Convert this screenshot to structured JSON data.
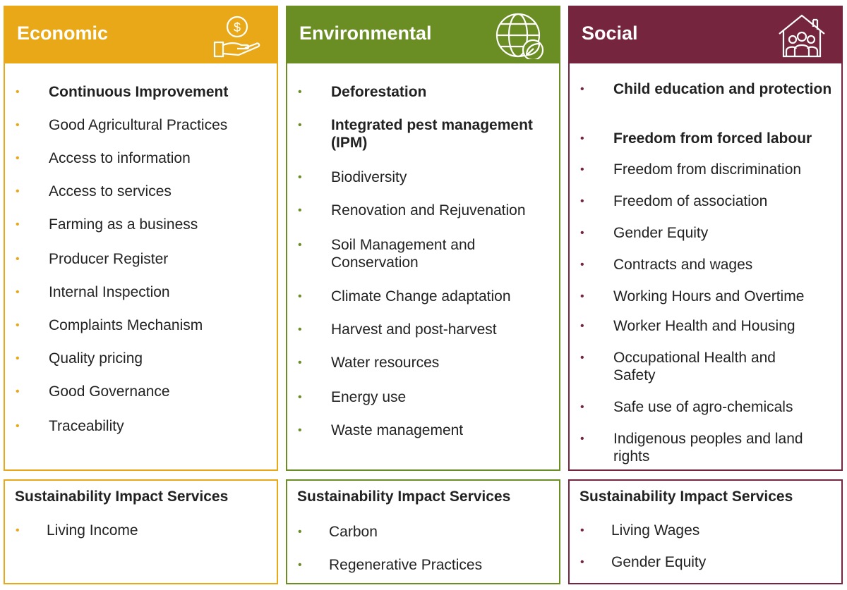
{
  "columns": [
    {
      "title": "Economic",
      "color": "#E8A817",
      "icon": "hand-coin-icon",
      "items": [
        {
          "text": "Continuous Improvement",
          "bold": true
        },
        {
          "text": "Good Agricultural Practices",
          "bold": false
        },
        {
          "text": "Access to information",
          "bold": false
        },
        {
          "text": "Access to services",
          "bold": false
        },
        {
          "text": "Farming as a business",
          "bold": false
        },
        {
          "text": "Producer Register",
          "bold": false
        },
        {
          "text": "Internal Inspection",
          "bold": false
        },
        {
          "text": "Complaints Mechanism",
          "bold": false
        },
        {
          "text": "Quality pricing",
          "bold": false
        },
        {
          "text": "Good Governance",
          "bold": false
        },
        {
          "text": "Traceability",
          "bold": false
        }
      ],
      "services": {
        "title": "Sustainability Impact Services",
        "items": [
          "Living Income"
        ]
      }
    },
    {
      "title": "Environmental",
      "color": "#6A8E23",
      "icon": "globe-leaf-icon",
      "items": [
        {
          "text": "Deforestation",
          "bold": true
        },
        {
          "text": "Integrated pest management (IPM)",
          "bold": true
        },
        {
          "text": "Biodiversity",
          "bold": false
        },
        {
          "text": "Renovation and Rejuvenation",
          "bold": false
        },
        {
          "text": "Soil Management and Conservation",
          "bold": false
        },
        {
          "text": "Climate Change adaptation",
          "bold": false
        },
        {
          "text": "Harvest and post-harvest",
          "bold": false
        },
        {
          "text": "Water resources",
          "bold": false
        },
        {
          "text": "Energy use",
          "bold": false
        },
        {
          "text": "Waste management",
          "bold": false
        }
      ],
      "services": {
        "title": "Sustainability Impact Services",
        "items": [
          "Carbon",
          "Regenerative Practices"
        ]
      }
    },
    {
      "title": "Social",
      "color": "#75263E",
      "icon": "house-family-icon",
      "items": [
        {
          "text": "Child education and protection",
          "bold": true
        },
        {
          "text": "Freedom from forced labour",
          "bold": true
        },
        {
          "text": "Freedom from discrimination",
          "bold": false
        },
        {
          "text": "Freedom of association",
          "bold": false
        },
        {
          "text": "Gender Equity",
          "bold": false
        },
        {
          "text": "Contracts and wages",
          "bold": false
        },
        {
          "text": "Working Hours and Overtime",
          "bold": false
        },
        {
          "text": "Worker Health and Housing",
          "bold": false
        },
        {
          "text": "Occupational Health and Safety",
          "bold": false
        },
        {
          "text": "Safe use of agro-chemicals",
          "bold": false
        },
        {
          "text": "Indigenous peoples and land rights",
          "bold": false
        }
      ],
      "services": {
        "title": "Sustainability Impact Services",
        "items": [
          "Living Wages",
          "Gender Equity"
        ]
      }
    }
  ]
}
